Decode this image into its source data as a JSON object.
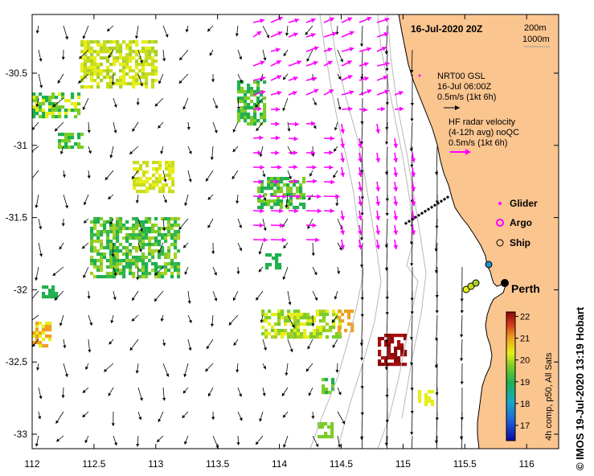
{
  "map": {
    "title": "16-Jul-2020 20Z",
    "depth_contours": [
      "200m",
      "1000m"
    ],
    "x_ticks": [
      "112",
      "112.5",
      "113",
      "113.5",
      "114",
      "114.5",
      "115",
      "115.5",
      "116"
    ],
    "y_ticks": [
      "-30.5",
      "-31",
      "-31.5",
      "-32",
      "-32.5",
      "-33"
    ],
    "city": "Perth",
    "legend": {
      "nrt_title": "NRT00 GSL",
      "nrt_time": "16-Jul 06:00Z",
      "nrt_scale": "0.5m/s (1kt 6h)",
      "hf_title": "HF radar velocity",
      "hf_sub": "(4-12h avg) noQC",
      "hf_scale": "0.5m/s (1kt 6h)",
      "glider": "Glider",
      "argo": "Argo",
      "ship": "Ship"
    },
    "colorbar": {
      "label": "4h comp, p50, All Sats",
      "ticks": [
        "22",
        "21",
        "20",
        "19",
        "18",
        "17"
      ],
      "min": 16.3,
      "max": 22.2
    },
    "colors": {
      "land": "#fbc590",
      "hf_vector": "#ff00ff",
      "glider": "#ff00ff",
      "argo": "#ff00ff",
      "ship": "#000000"
    },
    "credit": "© IMOS 19-Jul-2020 13:19 Hobart"
  }
}
